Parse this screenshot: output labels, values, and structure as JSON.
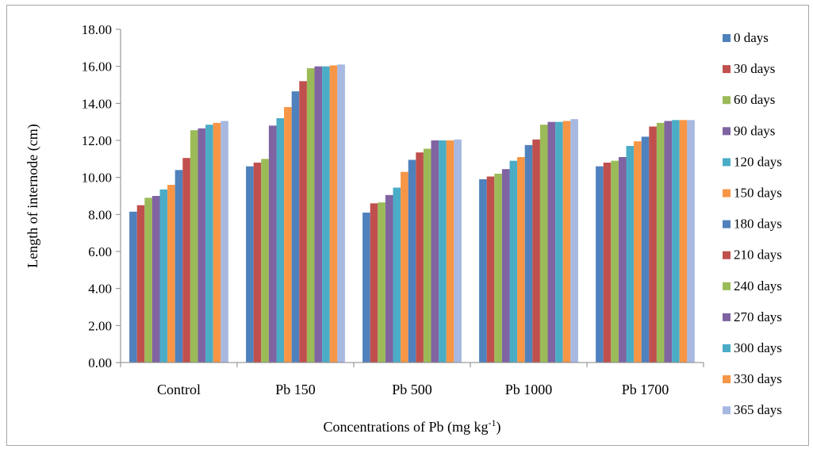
{
  "chart_data": {
    "type": "bar",
    "categories": [
      "Control",
      "Pb 150",
      "Pb 500",
      "Pb 1000",
      "Pb 1700"
    ],
    "series": [
      {
        "name": "0 days",
        "color": "#4f81bd",
        "values": [
          8.15,
          10.6,
          8.1,
          9.9,
          10.6
        ]
      },
      {
        "name": "30 days",
        "color": "#c0504d",
        "values": [
          8.5,
          10.8,
          8.6,
          10.05,
          10.8
        ]
      },
      {
        "name": "60 days",
        "color": "#9bbb59",
        "values": [
          8.9,
          11.0,
          8.65,
          10.2,
          10.9
        ]
      },
      {
        "name": "90 days",
        "color": "#8064a2",
        "values": [
          9.0,
          12.8,
          9.05,
          10.45,
          11.1
        ]
      },
      {
        "name": "120 days",
        "color": "#4bacc6",
        "values": [
          9.35,
          13.2,
          9.45,
          10.9,
          11.7
        ]
      },
      {
        "name": "150 days",
        "color": "#f79646",
        "values": [
          9.6,
          13.8,
          10.3,
          11.1,
          11.95
        ]
      },
      {
        "name": "180 days",
        "color": "#4f81bd",
        "values": [
          10.4,
          14.65,
          10.95,
          11.75,
          12.2
        ]
      },
      {
        "name": "210 days",
        "color": "#c0504d",
        "values": [
          11.05,
          15.2,
          11.35,
          12.05,
          12.75
        ]
      },
      {
        "name": "240 days",
        "color": "#9bbb59",
        "values": [
          12.55,
          15.9,
          11.55,
          12.85,
          12.95
        ]
      },
      {
        "name": "270 days",
        "color": "#8064a2",
        "values": [
          12.65,
          16.0,
          12.0,
          13.0,
          13.05
        ]
      },
      {
        "name": "300 days",
        "color": "#4bacc6",
        "values": [
          12.85,
          16.0,
          12.0,
          13.0,
          13.1
        ]
      },
      {
        "name": "330 days",
        "color": "#f79646",
        "values": [
          12.95,
          16.05,
          12.0,
          13.05,
          13.1
        ]
      },
      {
        "name": "365 days",
        "color": "#a7b9e1",
        "values": [
          13.05,
          16.1,
          12.05,
          13.15,
          13.1
        ]
      }
    ],
    "yticks": [
      "0.00",
      "2.00",
      "4.00",
      "6.00",
      "8.00",
      "10.00",
      "12.00",
      "14.00",
      "16.00",
      "18.00"
    ],
    "ylim": [
      0,
      18
    ],
    "ylabel": "Length of internode (cm)",
    "xlabel": {
      "main": "Concentrations of Pb (mg kg",
      "superscript": "-1",
      "end": ")"
    },
    "legend_position": "right",
    "grid": false
  }
}
